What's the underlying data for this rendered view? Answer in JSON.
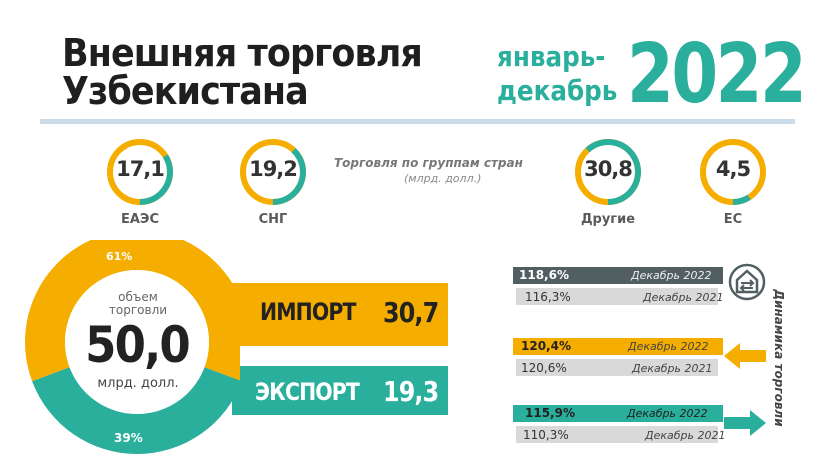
{
  "header": {
    "title_line1": "Внешняя торговля",
    "title_line2": "Узбекистана",
    "period_line1": "январь-",
    "period_line2": "декабрь",
    "year": "2022"
  },
  "groups": {
    "title": "Торговля по группам стран",
    "unit": "(млрд. долл.)",
    "items": [
      {
        "label": "ЕАЭС",
        "value": "17,1",
        "fraction": 0.34
      },
      {
        "label": "СНГ",
        "value": "19,2",
        "fraction": 0.38
      },
      {
        "label": "Другие",
        "value": "30,8",
        "fraction": 0.62
      },
      {
        "label": "ЕС",
        "value": "4,5",
        "fraction": 0.09
      }
    ]
  },
  "donut": {
    "caption_line1": "объем",
    "caption_line2": "торговли",
    "total": "50,0",
    "unit": "млрд. долл.",
    "import_pct_label": "61%",
    "export_pct_label": "39%"
  },
  "bars": {
    "import_label": "ИМПОРТ",
    "import_value": "30,7",
    "export_label": "ЭКСПОРТ",
    "export_value": "19,3"
  },
  "dynamics": {
    "side_label": "Динамика торговли",
    "rows": [
      {
        "cur_pct": "118,6%",
        "cur_label": "Декабрь 2022",
        "prev_pct": "116,3%",
        "prev_label": "Декабрь 2021"
      },
      {
        "cur_pct": "120,4%",
        "cur_label": "Декабрь 2022",
        "prev_pct": "120,6%",
        "prev_label": "Декабрь 2021"
      },
      {
        "cur_pct": "115,9%",
        "cur_label": "Декабрь 2022",
        "prev_pct": "110,3%",
        "prev_label": "Декабрь 2021"
      }
    ]
  },
  "colors": {
    "teal": "#2baf9d",
    "orange": "#f5ad00",
    "dark": "#515f63",
    "grey": "#d9d9d9"
  },
  "chart_data": {
    "type": "pie",
    "categories": [
      "ИМПОРТ",
      "ЭКСПОРТ"
    ],
    "values": [
      30.7,
      19.3
    ],
    "percent_labels": [
      "61%",
      "39%"
    ],
    "total": 50.0
  }
}
